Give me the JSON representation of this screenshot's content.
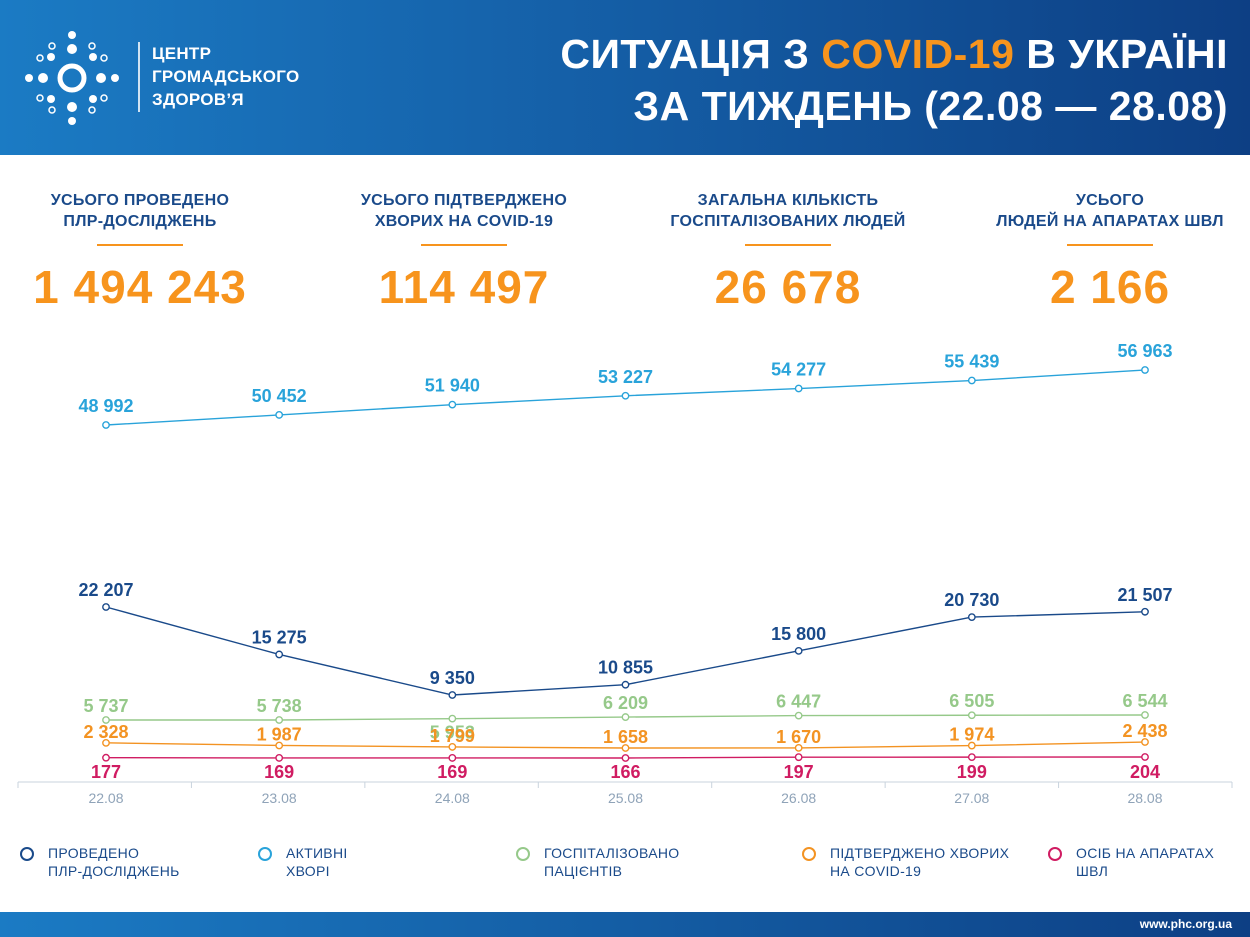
{
  "header": {
    "logo_lines": [
      "ЦЕНТР",
      "ГРОМАДСЬКОГО",
      "ЗДОРОВ’Я"
    ],
    "title_pre": "СИТУАЦІЯ З ",
    "title_accent": "COVID-19",
    "title_post": " В УКРАЇНІ",
    "title_line2": "ЗА ТИЖДЕНЬ (22.08 — 28.08)"
  },
  "kpis": [
    {
      "label_line1": "УСЬОГО ПРОВЕДЕНО",
      "label_line2": "ПЛР-ДОСЛІДЖЕНЬ",
      "value": "1 494 243"
    },
    {
      "label_line1": "УСЬОГО ПІДТВЕРДЖЕНО",
      "label_line2": "ХВОРИХ НА COVID-19",
      "value": "114 497"
    },
    {
      "label_line1": "ЗАГАЛЬНА КІЛЬКІСТЬ",
      "label_line2": "ГОСПІТАЛІЗОВАНИХ ЛЮДЕЙ",
      "value": "26 678"
    },
    {
      "label_line1": "УСЬОГО",
      "label_line2": "ЛЮДЕЙ НА АПАРАТАХ ШВЛ",
      "value": "2 166"
    }
  ],
  "chart_data": {
    "type": "line",
    "categories": [
      "22.08",
      "23.08",
      "24.08",
      "25.08",
      "26.08",
      "27.08",
      "28.08"
    ],
    "series": [
      {
        "name": "АКТИВНІ ХВОРІ",
        "color": "#29a3da",
        "values": [
          48992,
          50452,
          51940,
          53227,
          54277,
          55439,
          56963
        ],
        "labels": [
          "48 992",
          "50 452",
          "51 940",
          "53 227",
          "54 277",
          "55 439",
          "56 963"
        ]
      },
      {
        "name": "ПРОВЕДЕНО ПЛР-ДОСЛІДЖЕНЬ",
        "color": "#1a4a8a",
        "values": [
          22207,
          15275,
          9350,
          10855,
          15800,
          20730,
          21507
        ],
        "labels": [
          "22 207",
          "15 275",
          "9 350",
          "10 855",
          "15 800",
          "20 730",
          "21 507"
        ]
      },
      {
        "name": "ГОСПІТАЛІЗОВАНО ПАЦІЄНТІВ",
        "color": "#96c98a",
        "values": [
          5737,
          5738,
          5953,
          6209,
          6447,
          6505,
          6544
        ],
        "labels": [
          "5 737",
          "5 738",
          "5 953",
          "6 209",
          "6 447",
          "6 505",
          "6 544"
        ]
      },
      {
        "name": "ПІДТВЕРДЖЕНО ХВОРИХ НА COVID-19",
        "color": "#f39322",
        "values": [
          2328,
          1987,
          1799,
          1658,
          1670,
          1974,
          2438
        ],
        "labels": [
          "2 328",
          "1 987",
          "1 799",
          "1 658",
          "1 670",
          "1 974",
          "2 438"
        ]
      },
      {
        "name": "ОСІБ НА АПАРАТАХ ШВЛ",
        "color": "#d01c62",
        "values": [
          177,
          169,
          169,
          166,
          197,
          199,
          204
        ],
        "labels": [
          "177",
          "169",
          "169",
          "166",
          "197",
          "199",
          "204"
        ]
      }
    ],
    "grid": false
  },
  "legend": [
    {
      "line1": "ПРОВЕДЕНО",
      "line2": "ПЛР-ДОСЛІДЖЕНЬ",
      "color": "#1a4a8a"
    },
    {
      "line1": "АКТИВНІ",
      "line2": "ХВОРІ",
      "color": "#29a3da"
    },
    {
      "line1": "ГОСПІТАЛІЗОВАНО",
      "line2": "ПАЦІЄНТІВ",
      "color": "#96c98a"
    },
    {
      "line1": "ПІДТВЕРДЖЕНО ХВОРИХ",
      "line2": "НА COVID-19",
      "color": "#f39322"
    },
    {
      "line1": "ОСІБ НА АПАРАТАХ",
      "line2": "ШВЛ",
      "color": "#d01c62"
    }
  ],
  "footer": {
    "url": "www.phc.org.ua"
  }
}
